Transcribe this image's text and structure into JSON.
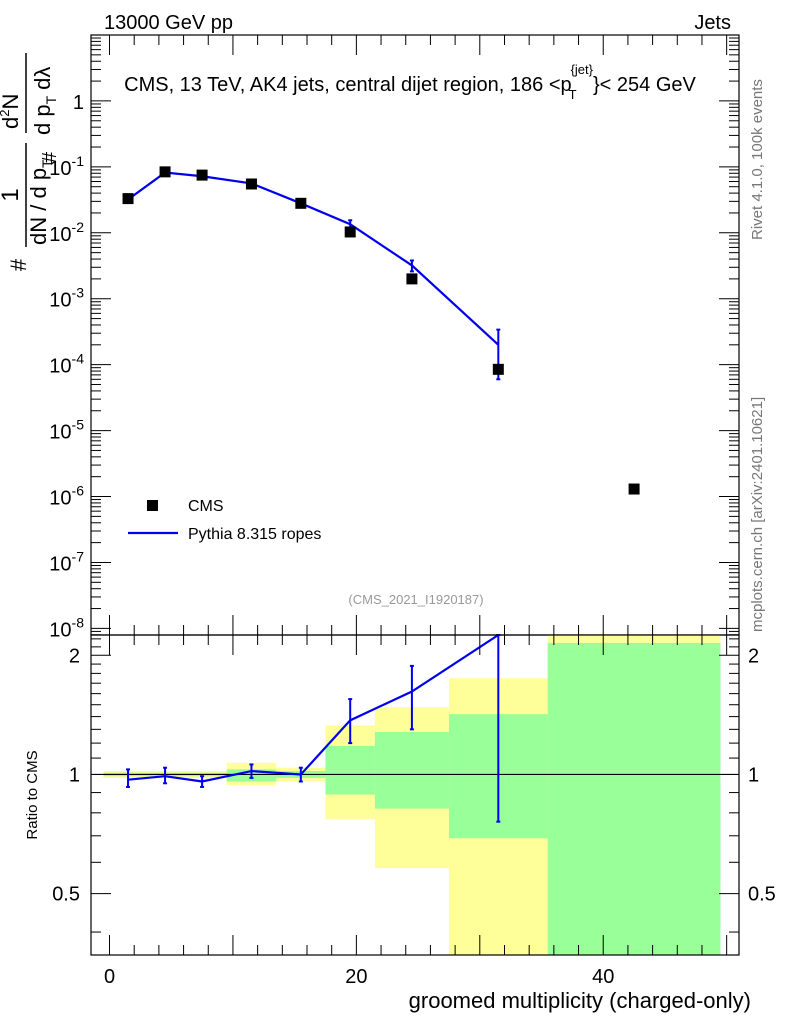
{
  "header": {
    "left": "13000 GeV pp",
    "right": "Jets"
  },
  "side_labels": {
    "rivet": "Rivet 4.1.0,  100k events",
    "mcplots": "mcplots.cern.ch [arXiv:2401.10621]"
  },
  "colors": {
    "mc": "#0000ee",
    "data": "#000000",
    "band_outer": "#ffff99",
    "band_inner": "#99ff99"
  },
  "chart_data": [
    {
      "type": "line",
      "title": "CMS, 13 TeV, AK4 jets, central dijet region, 186 <p",
      "title_sup": "{jet}",
      "title_sub": "T",
      "title_end": "}< 254 GeV",
      "analysis_id": "(CMS_2021_I1920187)",
      "ylabel": {
        "left_hash": "#",
        "frac1_num": "1",
        "frac1_den_a": "d",
        "frac1_den_b": "N / d p",
        "frac1_den_sub": "T",
        "frac2_num_a": "d",
        "frac2_num_sup": "2",
        "frac2_num_b": "N",
        "frac2_hash": "#",
        "frac2_den": "d p",
        "frac2_den_sub": "T",
        "frac2_den_end": "dλ"
      },
      "yscale": "log",
      "xlim": [
        -1.5,
        51
      ],
      "ylim_exp": [
        -8.1,
        1.0
      ],
      "ytick_labels": [
        {
          "base": "10",
          "exp": "-8",
          "v": -8
        },
        {
          "base": "10",
          "exp": "-7",
          "v": -7
        },
        {
          "base": "10",
          "exp": "-6",
          "v": -6
        },
        {
          "base": "10",
          "exp": "-5",
          "v": -5
        },
        {
          "base": "10",
          "exp": "-4",
          "v": -4
        },
        {
          "base": "10",
          "exp": "-3",
          "v": -3
        },
        {
          "base": "10",
          "exp": "-2",
          "v": -2
        },
        {
          "base": "10",
          "exp": "-1",
          "v": -1
        },
        {
          "base": "1",
          "exp": "",
          "v": 0
        }
      ],
      "legend": {
        "position": "bottom-left",
        "entries": [
          "CMS",
          "Pythia 8.315 ropes"
        ]
      },
      "series": [
        {
          "name": "CMS",
          "kind": "points",
          "x": [
            1.5,
            4.5,
            7.5,
            11.5,
            15.5,
            19.5,
            24.5,
            31.5,
            42.5
          ],
          "y": [
            0.033,
            0.084,
            0.075,
            0.055,
            0.028,
            0.0103,
            0.002,
            8.5e-05,
            1.3e-06
          ]
        },
        {
          "name": "Pythia 8.315 ropes",
          "kind": "line",
          "x": [
            1.5,
            4.5,
            7.5,
            11.5,
            15.5,
            19.5,
            24.5,
            31.5
          ],
          "y": [
            0.032,
            0.082,
            0.072,
            0.056,
            0.028,
            0.0135,
            0.0032,
            0.0002
          ],
          "yerr_low": [
            0.032,
            0.082,
            0.072,
            0.056,
            0.028,
            0.0115,
            0.0026,
            6e-05
          ],
          "yerr_high": [
            0.032,
            0.082,
            0.072,
            0.056,
            0.028,
            0.0155,
            0.0038,
            0.00034
          ]
        }
      ]
    },
    {
      "type": "line",
      "xlabel": "groomed multiplicity (charged-only)",
      "ylabel": "Ratio to CMS",
      "xlim": [
        -1.5,
        51
      ],
      "ylim": [
        0.35,
        2.25
      ],
      "xticks": [
        0,
        20,
        40
      ],
      "yticks": [
        0.5,
        1,
        2
      ],
      "bins": [
        {
          "lo": -0.5,
          "hi": 3.5,
          "outer": [
            0.98,
            1.02
          ],
          "inner": [
            0.99,
            1.01
          ]
        },
        {
          "lo": 3.5,
          "hi": 5.5,
          "outer": [
            0.98,
            1.02
          ],
          "inner": [
            0.99,
            1.01
          ]
        },
        {
          "lo": 5.5,
          "hi": 9.5,
          "outer": [
            0.98,
            1.02
          ],
          "inner": [
            0.99,
            1.01
          ]
        },
        {
          "lo": 9.5,
          "hi": 13.5,
          "outer": [
            0.94,
            1.07
          ],
          "inner": [
            0.96,
            1.03
          ]
        },
        {
          "lo": 13.5,
          "hi": 17.5,
          "outer": [
            0.96,
            1.04
          ],
          "inner": [
            0.98,
            1.02
          ]
        },
        {
          "lo": 17.5,
          "hi": 21.5,
          "outer": [
            0.77,
            1.33
          ],
          "inner": [
            0.89,
            1.18
          ]
        },
        {
          "lo": 21.5,
          "hi": 27.5,
          "outer": [
            0.58,
            1.48
          ],
          "inner": [
            0.82,
            1.28
          ]
        },
        {
          "lo": 27.5,
          "hi": 35.5,
          "outer": [
            0.35,
            1.75
          ],
          "inner": [
            0.69,
            1.42
          ]
        },
        {
          "lo": 35.5,
          "hi": 49.5,
          "outer": [
            0.35,
            2.25
          ],
          "inner": [
            0.35,
            2.15
          ]
        }
      ],
      "series": [
        {
          "name": "Pythia 8.315 ropes / CMS",
          "x": [
            1.5,
            4.5,
            7.5,
            11.5,
            15.5,
            19.5,
            24.5,
            31.5
          ],
          "y": [
            0.97,
            0.99,
            0.96,
            1.02,
            1.0,
            1.37,
            1.62,
            2.35
          ],
          "yerr_low": [
            0.93,
            0.95,
            0.93,
            0.98,
            0.96,
            1.2,
            1.3,
            0.76
          ],
          "yerr_high": [
            1.03,
            1.04,
            0.99,
            1.06,
            1.04,
            1.55,
            1.88,
            2.35
          ]
        }
      ]
    }
  ]
}
